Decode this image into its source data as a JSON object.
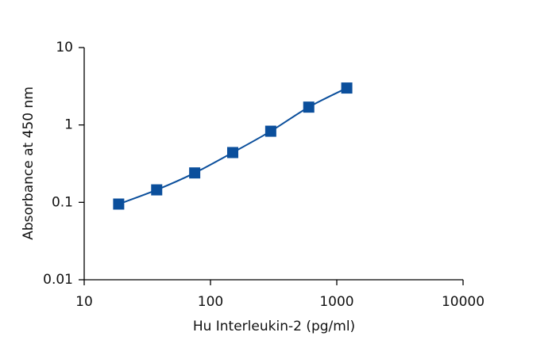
{
  "chart_data": {
    "type": "line",
    "x_label": "Hu Interleukin-2 (pg/ml)",
    "y_label": "Absorbance at 450 nm",
    "x": [
      18.75,
      37.5,
      75,
      150,
      300,
      600,
      1200
    ],
    "values": [
      0.095,
      0.145,
      0.24,
      0.44,
      0.83,
      1.7,
      3.0
    ],
    "color": "#0b4f9c",
    "xscale": "log",
    "yscale": "log",
    "xlim": [
      10,
      10000
    ],
    "xticks": [
      10,
      100,
      1000,
      10000
    ],
    "ylim": [
      0.01,
      10
    ],
    "yticks": [
      0.01,
      0.1,
      1,
      10
    ],
    "grid": false
  }
}
